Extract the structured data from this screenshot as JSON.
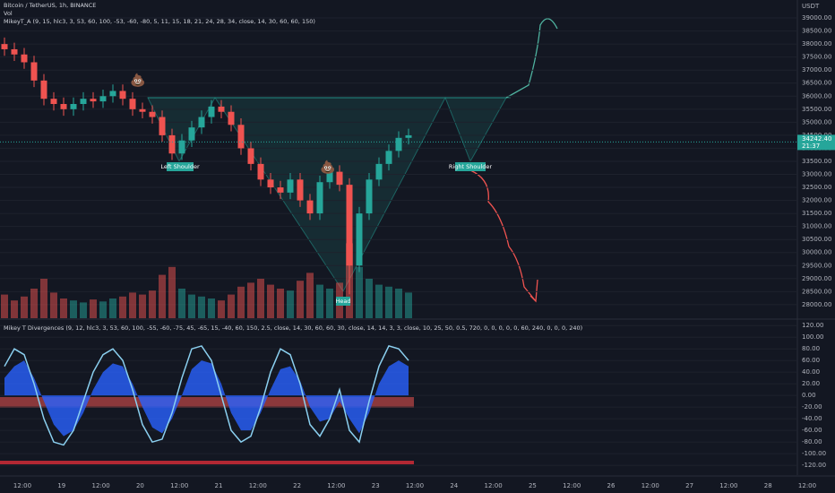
{
  "chart_data": [
    {
      "type": "candlestick",
      "title": "Bitcoin / TetherUS, 1h, BINANCE",
      "volume_title": "Vol",
      "indicator_title": "MikeyT_A (9, 15, hlc3, 3, 53, 60, 100, -53, -60, -80, 5, 11, 15, 18, 21, 24, 28, 34, close, 14, 30, 60, 60, 150)",
      "currency": "USDT",
      "open": [
        38000,
        37800,
        37600,
        37300,
        36600,
        35900,
        35700,
        35500,
        35700,
        35900,
        35800,
        36000,
        36200,
        35900,
        35500,
        35400,
        35200,
        34500,
        33800,
        34300,
        34800,
        35200,
        35600,
        35400,
        34900,
        34000,
        33400,
        32800,
        32500,
        32300,
        32800,
        32000,
        31500,
        32700,
        33100,
        32600,
        29500,
        31500,
        32800,
        33400,
        33900,
        34400
      ],
      "high": [
        38250,
        38050,
        37850,
        37550,
        36850,
        36150,
        35950,
        35950,
        36150,
        36150,
        36250,
        36450,
        36450,
        36150,
        35750,
        35650,
        35450,
        34750,
        34550,
        35050,
        35450,
        35850,
        35850,
        35650,
        35150,
        34250,
        33650,
        33050,
        32750,
        33050,
        33050,
        32250,
        32950,
        33350,
        33350,
        32850,
        31750,
        33050,
        33650,
        34150,
        34650,
        34750
      ],
      "low": [
        37550,
        37350,
        37050,
        36350,
        35650,
        35450,
        35250,
        35250,
        35450,
        35550,
        35550,
        35750,
        35650,
        35250,
        35150,
        34950,
        34250,
        33550,
        33550,
        34050,
        34550,
        34950,
        35150,
        34650,
        33750,
        33150,
        32550,
        32250,
        32050,
        32050,
        31750,
        31250,
        31250,
        32450,
        32350,
        28400,
        29250,
        31250,
        32550,
        33150,
        33650,
        34150
      ],
      "close": [
        37800,
        37600,
        37300,
        36600,
        35900,
        35700,
        35500,
        35700,
        35900,
        35800,
        36000,
        36200,
        35900,
        35500,
        35400,
        35200,
        34500,
        33800,
        34300,
        34800,
        35200,
        35600,
        35400,
        34900,
        34000,
        33400,
        32800,
        32500,
        32300,
        32800,
        32000,
        31500,
        32700,
        33100,
        32600,
        29500,
        31500,
        32800,
        33400,
        33900,
        34400,
        34500
      ],
      "volume": [
        120,
        90,
        110,
        150,
        200,
        130,
        100,
        90,
        80,
        95,
        85,
        100,
        110,
        130,
        120,
        140,
        220,
        260,
        150,
        120,
        110,
        100,
        90,
        120,
        160,
        180,
        200,
        170,
        150,
        140,
        190,
        230,
        170,
        150,
        180,
        380,
        260,
        200,
        170,
        160,
        150,
        130
      ],
      "volume_lim": [
        0,
        500
      ],
      "up_color": "#26a69a",
      "down_color": "#ef5350",
      "last_price": 34242.4,
      "last_price_label": "34242.40",
      "countdown": "21:37",
      "ylim": [
        27480,
        39690
      ],
      "yticks": [
        {
          "value": 28000,
          "label": "28000.00"
        },
        {
          "value": 28500,
          "label": "28500.00"
        },
        {
          "value": 29000,
          "label": "29000.00"
        },
        {
          "value": 29500,
          "label": "29500.00"
        },
        {
          "value": 30000,
          "label": "30000.00"
        },
        {
          "value": 30500,
          "label": "30500.00"
        },
        {
          "value": 31000,
          "label": "31000.00"
        },
        {
          "value": 31500,
          "label": "31500.00"
        },
        {
          "value": 32000,
          "label": "32000.00"
        },
        {
          "value": 32500,
          "label": "32500.00"
        },
        {
          "value": 33000,
          "label": "33000.00"
        },
        {
          "value": 33500,
          "label": "33500.00"
        },
        {
          "value": 34000,
          "label": "34000.00"
        },
        {
          "value": 34500,
          "label": "34500.00"
        },
        {
          "value": 35000,
          "label": "35000.00"
        },
        {
          "value": 35500,
          "label": "35500.00"
        },
        {
          "value": 36000,
          "label": "36000.00"
        },
        {
          "value": 36500,
          "label": "36500.00"
        },
        {
          "value": 37000,
          "label": "37000.00"
        },
        {
          "value": 37500,
          "label": "37500.00"
        },
        {
          "value": 38000,
          "label": "38000.00"
        },
        {
          "value": 38500,
          "label": "38500.00"
        },
        {
          "value": 39000,
          "label": "39000.00"
        }
      ],
      "annotations": {
        "left": "Left Shoulder",
        "head": "Head",
        "right": "Right Shoulder",
        "emoji1": "💩",
        "emoji2": "💩"
      },
      "time_labels": [
        "12:00",
        "19",
        "12:00",
        "20",
        "12:00",
        "21",
        "12:00",
        "22",
        "12:00",
        "23",
        "12:00",
        "24",
        "12:00",
        "25",
        "12:00",
        "26",
        "12:00",
        "27",
        "12:00",
        "28",
        "12:00"
      ]
    },
    {
      "type": "oscillator",
      "title": "Mikey T Divergences (9, 12, hlc3, 3, 53, 60, 100, -55, -60, -75, 45, -65, 15, -40, 60, 150, 2.5, close, 14, 30, 60, 60, 30, close, 14, 14, 3, 3, close, 10, 25, 50, 0.5, 720, 0, 0, 0, 0, 0, 60, 240, 0, 0, 0, 240)",
      "series": [
        {
          "color": "#2962ff",
          "values": [
            30,
            50,
            60,
            30,
            -10,
            -50,
            -70,
            -60,
            -30,
            10,
            40,
            55,
            50,
            20,
            -20,
            -55,
            -65,
            -40,
            0,
            45,
            60,
            55,
            20,
            -30,
            -60,
            -60,
            -30,
            10,
            45,
            50,
            25,
            -20,
            -45,
            -40,
            -10,
            -40,
            -65,
            -30,
            20,
            50,
            60,
            50
          ]
        },
        {
          "color": "#8bd0f0",
          "values": [
            50,
            80,
            70,
            20,
            -40,
            -80,
            -85,
            -60,
            -10,
            40,
            70,
            80,
            60,
            10,
            -50,
            -80,
            -75,
            -30,
            30,
            80,
            85,
            60,
            0,
            -60,
            -80,
            -70,
            -20,
            40,
            80,
            70,
            20,
            -50,
            -70,
            -40,
            10,
            -60,
            -80,
            -10,
            50,
            85,
            80,
            60
          ]
        }
      ],
      "ylim": [
        -129,
        128
      ],
      "yticks": [
        {
          "value": 120,
          "label": "120.00"
        },
        {
          "value": 100,
          "label": "100.00"
        },
        {
          "value": 80,
          "label": "80.00"
        },
        {
          "value": 60,
          "label": "60.00"
        },
        {
          "value": 40,
          "label": "40.00"
        },
        {
          "value": 20,
          "label": "20.00"
        },
        {
          "value": 0,
          "label": "0.00"
        },
        {
          "value": -20,
          "label": "-20.00"
        },
        {
          "value": -40,
          "label": "-40.00"
        },
        {
          "value": -60,
          "label": "-60.00"
        },
        {
          "value": -80,
          "label": "-80.00"
        },
        {
          "value": -100,
          "label": "-100.00"
        },
        {
          "value": -120,
          "label": "-120.00"
        }
      ]
    }
  ]
}
